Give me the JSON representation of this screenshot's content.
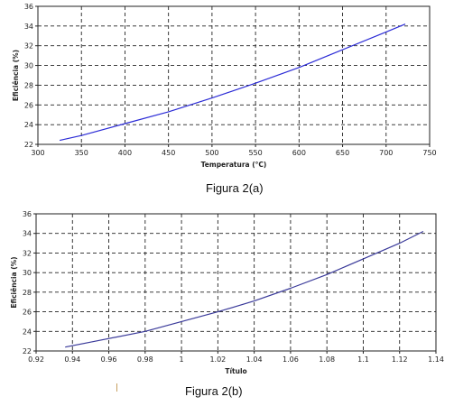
{
  "chart_data": [
    {
      "type": "line",
      "x": [
        325,
        350,
        400,
        450,
        500,
        550,
        600,
        650,
        700,
        722
      ],
      "series": [
        {
          "values": [
            22.4,
            22.9,
            24.1,
            25.3,
            26.7,
            28.2,
            29.8,
            31.6,
            33.4,
            34.2
          ],
          "color": "#2b2bd6"
        }
      ],
      "xlabel": "Temperatura (°C)",
      "ylabel": "Eficiência (%)",
      "xlim": [
        300,
        750
      ],
      "ylim": [
        22,
        36
      ],
      "xticks": [
        "300",
        "350",
        "400",
        "450",
        "500",
        "550",
        "600",
        "650",
        "700",
        "750"
      ],
      "yticks": [
        "22",
        "24",
        "26",
        "28",
        "30",
        "32",
        "34",
        "36"
      ],
      "grid": true
    },
    {
      "type": "line",
      "x": [
        0.936,
        0.95,
        0.98,
        1.0,
        1.02,
        1.04,
        1.06,
        1.08,
        1.1,
        1.12,
        1.133
      ],
      "series": [
        {
          "values": [
            22.4,
            22.9,
            24.0,
            25.0,
            26.0,
            27.1,
            28.4,
            29.8,
            31.4,
            33.0,
            34.2
          ],
          "color": "#3a3a9a"
        }
      ],
      "xlabel": "Título",
      "ylabel": "Eficiência (%)",
      "xlim": [
        0.92,
        1.14
      ],
      "ylim": [
        22,
        36
      ],
      "xticks": [
        "0.92",
        "0.94",
        "0.96",
        "0.98",
        "1",
        "1.02",
        "1.04",
        "1.06",
        "1.08",
        "1.1",
        "1.12",
        "1.14"
      ],
      "yticks": [
        "22",
        "24",
        "26",
        "28",
        "30",
        "32",
        "34",
        "36"
      ],
      "grid": true
    }
  ],
  "captions": {
    "a": "Figura 2(a)",
    "b": "Figura 2(b)"
  }
}
